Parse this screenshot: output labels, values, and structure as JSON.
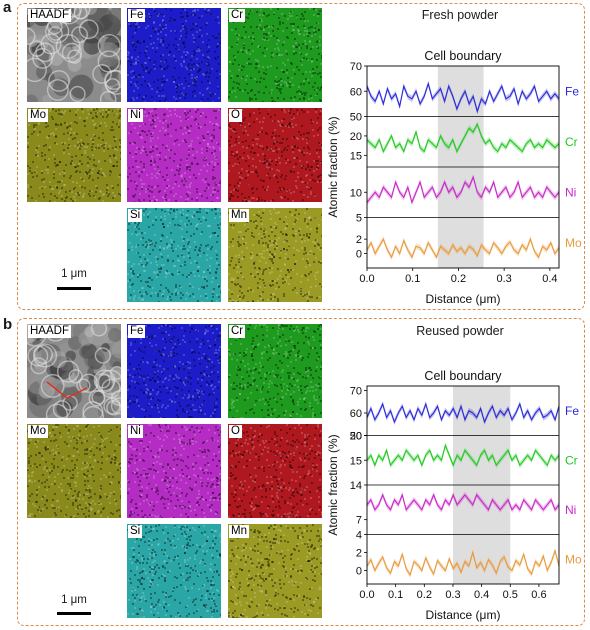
{
  "panels": [
    {
      "letter": "a",
      "title": "Fresh powder",
      "scale_bar": "1 μm",
      "maps": [
        {
          "label": "HAADF",
          "color": "#9a9a9a",
          "kind": "haadf"
        },
        {
          "label": "Fe",
          "color": "#1c1cc8",
          "kind": "map"
        },
        {
          "label": "Cr",
          "color": "#1e9a1e",
          "kind": "map"
        },
        {
          "label": "Mo",
          "color": "#8a8a1c",
          "kind": "map"
        },
        {
          "label": "Ni",
          "color": "#b42cc4",
          "kind": "map"
        },
        {
          "label": "O",
          "color": "#b01820",
          "kind": "map"
        },
        {
          "label": "Si",
          "color": "#2aa6a6",
          "kind": "map"
        },
        {
          "label": "Mn",
          "color": "#9a9a24",
          "kind": "map"
        }
      ]
    },
    {
      "letter": "b",
      "title": "Reused powder",
      "scale_bar": "1 μm",
      "maps": [
        {
          "label": "HAADF",
          "color": "#9a9a9a",
          "kind": "haadf"
        },
        {
          "label": "Fe",
          "color": "#1c1cc8",
          "kind": "map"
        },
        {
          "label": "Cr",
          "color": "#1e9a1e",
          "kind": "map"
        },
        {
          "label": "Mo",
          "color": "#8a8a1c",
          "kind": "map"
        },
        {
          "label": "Ni",
          "color": "#b42cc4",
          "kind": "map"
        },
        {
          "label": "O",
          "color": "#b01820",
          "kind": "map"
        },
        {
          "label": "Si",
          "color": "#2aa6a6",
          "kind": "map"
        },
        {
          "label": "Mn",
          "color": "#9a9a24",
          "kind": "map"
        }
      ]
    }
  ],
  "chart_data": [
    {
      "type": "line",
      "title": "Cell boundary",
      "xlabel": "Distance (μm)",
      "ylabel": "Atomic fraction (%)",
      "xlim": [
        0.0,
        0.42
      ],
      "xticks": [
        "0.0",
        "0.1",
        "0.2",
        "0.3",
        "0.4"
      ],
      "shaded_region": [
        0.155,
        0.255
      ],
      "series": [
        {
          "name": "Fe",
          "color": "#2a2ad6",
          "ylim": [
            50,
            70
          ],
          "yticks": [
            "50",
            "60",
            "70"
          ],
          "values": [
            62,
            58,
            56,
            60,
            55,
            61,
            57,
            59,
            54,
            62,
            58,
            57,
            60,
            55,
            58,
            63,
            57,
            59,
            61,
            56,
            62,
            58,
            53,
            57,
            60,
            55,
            58,
            52,
            57,
            55,
            60,
            56,
            59,
            62,
            57,
            58,
            61,
            55,
            60,
            57,
            59,
            62,
            56,
            58,
            60,
            57,
            59,
            57
          ]
        },
        {
          "name": "Cr",
          "color": "#22c922",
          "ylim": [
            12,
            25
          ],
          "yticks": [
            "15",
            "20"
          ],
          "values": [
            19,
            18,
            17,
            19,
            16,
            18,
            20,
            17,
            18,
            16,
            19,
            18,
            21,
            17,
            16,
            19,
            18,
            17,
            20,
            18,
            17,
            19,
            16,
            18,
            20,
            22,
            21,
            23,
            20,
            18,
            19,
            17,
            16,
            18,
            17,
            19,
            18,
            17,
            16,
            18,
            19,
            17,
            18,
            17,
            19,
            18,
            17,
            18
          ]
        },
        {
          "name": "Ni",
          "color": "#c828c8",
          "ylim": [
            5,
            15
          ],
          "yticks": [
            "5",
            "10"
          ],
          "values": [
            8,
            9,
            10,
            9,
            11,
            10,
            9,
            12,
            10,
            9,
            11,
            8,
            10,
            12,
            9,
            10,
            11,
            9,
            10,
            12,
            10,
            11,
            9,
            10,
            12,
            11,
            13,
            10,
            9,
            11,
            10,
            12,
            9,
            10,
            11,
            9,
            10,
            12,
            9,
            10,
            11,
            9,
            10,
            9,
            11,
            10,
            9,
            10
          ]
        },
        {
          "name": "Mo",
          "color": "#e89a3c",
          "ylim": [
            -2,
            5
          ],
          "yticks": [
            "0",
            "2"
          ],
          "values": [
            0.5,
            1.5,
            0,
            1,
            2,
            0.5,
            -0.5,
            1,
            0,
            1.8,
            0.5,
            -0.5,
            1,
            0.8,
            0,
            1.5,
            0.5,
            -0.5,
            1,
            0.5,
            0,
            1.2,
            0.3,
            0.8,
            0,
            1,
            0.6,
            -0.3,
            1.2,
            0.5,
            0,
            1.5,
            0.8,
            0,
            1,
            1.6,
            0.5,
            0,
            1.2,
            0.5,
            2,
            0.3,
            -0.5,
            1,
            0.5,
            1.5,
            0,
            0.8
          ]
        }
      ]
    },
    {
      "type": "line",
      "title": "Cell boundary",
      "xlabel": "Distance (μm)",
      "ylabel": "Atomic fraction (%)",
      "xlim": [
        0.0,
        0.67
      ],
      "xticks": [
        "0.0",
        "0.1",
        "0.2",
        "0.3",
        "0.4",
        "0.5",
        "0.6"
      ],
      "shaded_region": [
        0.3,
        0.5
      ],
      "series": [
        {
          "name": "Fe",
          "color": "#2a2ad6",
          "ylim": [
            50,
            72
          ],
          "yticks": [
            "50",
            "60",
            "70"
          ],
          "values": [
            58,
            62,
            57,
            60,
            64,
            58,
            61,
            56,
            60,
            63,
            58,
            61,
            57,
            62,
            59,
            64,
            58,
            60,
            63,
            57,
            61,
            59,
            62,
            58,
            63,
            57,
            61,
            60,
            58,
            62,
            56,
            60,
            63,
            58,
            61,
            59,
            62,
            57,
            60,
            64,
            58,
            61,
            57,
            60,
            62,
            58,
            59,
            61,
            57,
            63
          ]
        },
        {
          "name": "Cr",
          "color": "#22c922",
          "ylim": [
            10,
            20
          ],
          "yticks": [
            "15",
            "20"
          ],
          "values": [
            15,
            16,
            14,
            16,
            15,
            17,
            14,
            15,
            16,
            15,
            17,
            16,
            15,
            16,
            14,
            16,
            17,
            15,
            16,
            15,
            18,
            16,
            14,
            16,
            15,
            17,
            16,
            15,
            14,
            16,
            17,
            15,
            16,
            14,
            15,
            16,
            17,
            15,
            16,
            14,
            15,
            16,
            15,
            17,
            16,
            15,
            14,
            16,
            15,
            16
          ]
        },
        {
          "name": "Ni",
          "color": "#c828c8",
          "ylim": [
            4,
            14
          ],
          "yticks": [
            "7",
            "14"
          ],
          "values": [
            10,
            11,
            9,
            10,
            12,
            10,
            9,
            11,
            10,
            12,
            9,
            10,
            11,
            10,
            9,
            11,
            10,
            12,
            10,
            9,
            11,
            10,
            12,
            10,
            11,
            12,
            11,
            10,
            12,
            11,
            10,
            9,
            11,
            10,
            9,
            10,
            11,
            9,
            10,
            9,
            11,
            10,
            9,
            11,
            10,
            9,
            10,
            11,
            9,
            10
          ]
        },
        {
          "name": "Mo",
          "color": "#e89a3c",
          "ylim": [
            -1.5,
            4
          ],
          "yticks": [
            "0",
            "2",
            "4"
          ],
          "values": [
            0.5,
            1.2,
            0,
            0.8,
            1.5,
            0.3,
            -0.3,
            1,
            0.5,
            1.8,
            0.2,
            -0.5,
            1,
            0.6,
            0,
            1.4,
            0.4,
            -0.4,
            1.1,
            0.5,
            0,
            1.3,
            0.2,
            0.8,
            -0.2,
            1,
            0.5,
            2,
            0.3,
            0.9,
            0,
            1.2,
            0.6,
            -0.3,
            1,
            1.5,
            0.4,
            0,
            1.1,
            0.6,
            1.8,
            0.2,
            -0.4,
            1,
            0.5,
            1.6,
            0,
            0.9,
            2.2,
            0.5
          ]
        }
      ]
    }
  ]
}
